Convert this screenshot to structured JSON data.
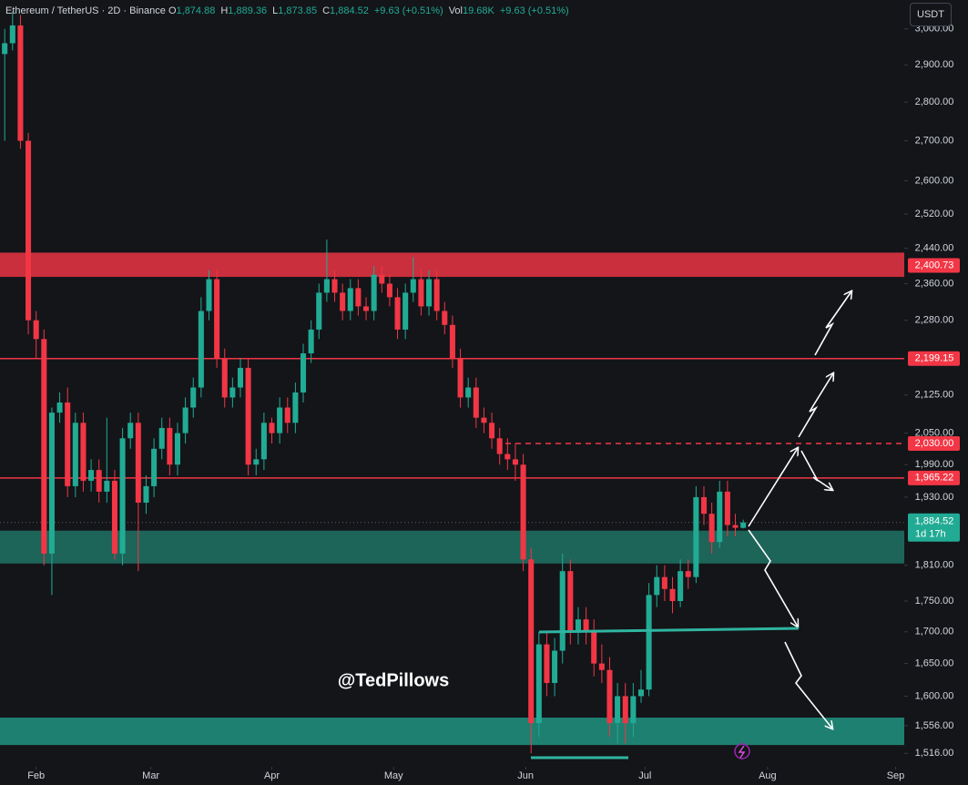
{
  "chart_data": {
    "type": "candlestick",
    "symbol": "Ethereum / TetherUS · 2D · Binance",
    "legend": [
      {
        "key": "O",
        "text": "1,874.88"
      },
      {
        "key": "H",
        "text": "1,889.36"
      },
      {
        "key": "L",
        "text": "1,873.85"
      },
      {
        "key": "C",
        "text": "1,884.52"
      },
      {
        "key": "",
        "text": "+9.63 (+0.51%)"
      },
      {
        "key": "Vol",
        "text": "19.68K"
      },
      {
        "key": "",
        "text": "+9.63 (+0.51%)"
      }
    ],
    "currency": "USDT",
    "watermark": "@TedPillows",
    "up_color": "#22ab94",
    "down_color": "#f23645",
    "log_scale": true,
    "grid": false,
    "ylim": [
      1497,
      3083
    ],
    "xlim": [
      -0.6,
      114.5
    ],
    "yticks": [
      {
        "value": 3000,
        "label": "3,000.00"
      },
      {
        "value": 2900,
        "label": "2,900.00"
      },
      {
        "value": 2800,
        "label": "2,800.00"
      },
      {
        "value": 2700,
        "label": "2,700.00"
      },
      {
        "value": 2600,
        "label": "2,600.00"
      },
      {
        "value": 2520,
        "label": "2,520.00"
      },
      {
        "value": 2440,
        "label": "2,440.00"
      },
      {
        "value": 2360,
        "label": "2,360.00"
      },
      {
        "value": 2280,
        "label": "2,280.00"
      },
      {
        "value": 2125,
        "label": "2,125.00"
      },
      {
        "value": 2050,
        "label": "2,050.00"
      },
      {
        "value": 1990,
        "label": "1,990.00"
      },
      {
        "value": 1930,
        "label": "1,930.00"
      },
      {
        "value": 1810,
        "label": "1,810.00"
      },
      {
        "value": 1750,
        "label": "1,750.00"
      },
      {
        "value": 1700,
        "label": "1,700.00"
      },
      {
        "value": 1650,
        "label": "1,650.00"
      },
      {
        "value": 1600,
        "label": "1,600.00"
      },
      {
        "value": 1556,
        "label": "1,556.00"
      },
      {
        "value": 1516,
        "label": "1,516.00"
      }
    ],
    "xticks": [
      {
        "value": 4,
        "label": "Feb"
      },
      {
        "value": 18.6,
        "label": "Mar"
      },
      {
        "value": 34,
        "label": "Apr"
      },
      {
        "value": 49.5,
        "label": "May"
      },
      {
        "value": 66.3,
        "label": "Jun"
      },
      {
        "value": 81.5,
        "label": "Jul"
      },
      {
        "value": 97.1,
        "label": "Aug"
      },
      {
        "value": 113.4,
        "label": "Sep"
      }
    ],
    "zones": [
      {
        "from": 2375,
        "to": 2430,
        "color": "#d9323f"
      },
      {
        "from": 1813,
        "to": 1870,
        "color": "#1e6b5e"
      },
      {
        "from": 1528,
        "to": 1568,
        "color": "#1f8a78"
      }
    ],
    "levels": [
      {
        "value": 2400.73,
        "label": "2,400.73",
        "line": "none"
      },
      {
        "value": 2199.15,
        "label": "2,199.15",
        "line": "solid"
      },
      {
        "value": 2030,
        "label": "2,030.00",
        "line": "dashed"
      },
      {
        "value": 1965.22,
        "label": "1,965.22",
        "line": "solid"
      }
    ],
    "level_color": "#f23645",
    "last_price_label": "1,884.52",
    "countdown": "1d 17h",
    "ohlc": [
      [
        2930,
        3000,
        2700,
        2960
      ],
      [
        2960,
        3050,
        2940,
        3010
      ],
      [
        3010,
        3040,
        2680,
        2700
      ],
      [
        2700,
        2720,
        2250,
        2280
      ],
      [
        2280,
        2300,
        2200,
        2240
      ],
      [
        2240,
        2260,
        1810,
        1830
      ],
      [
        1830,
        2100,
        1760,
        2090
      ],
      [
        2090,
        2130,
        2070,
        2110
      ],
      [
        2110,
        2140,
        1930,
        1950
      ],
      [
        1950,
        2090,
        1930,
        2070
      ],
      [
        2070,
        2090,
        1940,
        1960
      ],
      [
        1960,
        2000,
        1940,
        1980
      ],
      [
        1980,
        2000,
        1920,
        1940
      ],
      [
        1940,
        2080,
        1920,
        1960
      ],
      [
        1960,
        1980,
        1820,
        1830
      ],
      [
        1830,
        2060,
        1810,
        2040
      ],
      [
        2040,
        2090,
        2020,
        2070
      ],
      [
        2070,
        2090,
        1800,
        1920
      ],
      [
        1920,
        1970,
        1900,
        1950
      ],
      [
        1950,
        2040,
        1930,
        2020
      ],
      [
        2020,
        2080,
        2000,
        2060
      ],
      [
        2060,
        2080,
        1970,
        1990
      ],
      [
        1990,
        2070,
        1970,
        2050
      ],
      [
        2050,
        2120,
        2030,
        2100
      ],
      [
        2100,
        2160,
        2080,
        2140
      ],
      [
        2140,
        2330,
        2120,
        2300
      ],
      [
        2300,
        2390,
        2280,
        2370
      ],
      [
        2370,
        2390,
        2180,
        2200
      ],
      [
        2200,
        2220,
        2100,
        2120
      ],
      [
        2120,
        2160,
        2100,
        2140
      ],
      [
        2140,
        2200,
        2120,
        2180
      ],
      [
        2180,
        2200,
        1970,
        1990
      ],
      [
        1990,
        2020,
        1970,
        2000
      ],
      [
        2000,
        2090,
        1980,
        2070
      ],
      [
        2070,
        2080,
        2030,
        2050
      ],
      [
        2050,
        2120,
        2030,
        2100
      ],
      [
        2100,
        2120,
        2050,
        2070
      ],
      [
        2070,
        2150,
        2050,
        2130
      ],
      [
        2130,
        2230,
        2110,
        2210
      ],
      [
        2210,
        2280,
        2190,
        2260
      ],
      [
        2260,
        2360,
        2240,
        2340
      ],
      [
        2340,
        2460,
        2320,
        2370
      ],
      [
        2370,
        2390,
        2320,
        2340
      ],
      [
        2340,
        2360,
        2280,
        2300
      ],
      [
        2300,
        2370,
        2280,
        2350
      ],
      [
        2350,
        2370,
        2290,
        2310
      ],
      [
        2310,
        2330,
        2280,
        2300
      ],
      [
        2300,
        2400,
        2280,
        2380
      ],
      [
        2380,
        2400,
        2340,
        2360
      ],
      [
        2360,
        2380,
        2310,
        2330
      ],
      [
        2330,
        2350,
        2240,
        2260
      ],
      [
        2260,
        2360,
        2240,
        2340
      ],
      [
        2340,
        2420,
        2320,
        2370
      ],
      [
        2370,
        2390,
        2290,
        2310
      ],
      [
        2310,
        2390,
        2290,
        2370
      ],
      [
        2370,
        2390,
        2280,
        2300
      ],
      [
        2300,
        2320,
        2250,
        2270
      ],
      [
        2270,
        2290,
        2180,
        2200
      ],
      [
        2200,
        2220,
        2100,
        2120
      ],
      [
        2120,
        2160,
        2100,
        2140
      ],
      [
        2140,
        2160,
        2060,
        2080
      ],
      [
        2080,
        2100,
        2050,
        2070
      ],
      [
        2070,
        2090,
        2020,
        2040
      ],
      [
        2040,
        2060,
        1990,
        2010
      ],
      [
        2010,
        2040,
        1980,
        2000
      ],
      [
        2000,
        2030,
        1960,
        1990
      ],
      [
        1990,
        2010,
        1800,
        1820
      ],
      [
        1820,
        1840,
        1516,
        1560
      ],
      [
        1560,
        1700,
        1540,
        1680
      ],
      [
        1680,
        1700,
        1600,
        1620
      ],
      [
        1620,
        1690,
        1600,
        1670
      ],
      [
        1670,
        1830,
        1650,
        1800
      ],
      [
        1800,
        1820,
        1680,
        1700
      ],
      [
        1700,
        1740,
        1680,
        1720
      ],
      [
        1720,
        1740,
        1680,
        1700
      ],
      [
        1700,
        1720,
        1630,
        1650
      ],
      [
        1650,
        1680,
        1620,
        1640
      ],
      [
        1640,
        1660,
        1540,
        1560
      ],
      [
        1560,
        1620,
        1530,
        1600
      ],
      [
        1600,
        1620,
        1530,
        1560
      ],
      [
        1560,
        1620,
        1540,
        1600
      ],
      [
        1600,
        1640,
        1590,
        1610
      ],
      [
        1610,
        1780,
        1600,
        1760
      ],
      [
        1760,
        1810,
        1740,
        1790
      ],
      [
        1790,
        1810,
        1750,
        1770
      ],
      [
        1770,
        1790,
        1730,
        1750
      ],
      [
        1750,
        1820,
        1740,
        1800
      ],
      [
        1800,
        1820,
        1770,
        1790
      ],
      [
        1790,
        1950,
        1780,
        1930
      ],
      [
        1930,
        1950,
        1880,
        1900
      ],
      [
        1900,
        1920,
        1830,
        1850
      ],
      [
        1850,
        1960,
        1840,
        1940
      ],
      [
        1940,
        1960,
        1860,
        1880
      ],
      [
        1880,
        1900,
        1860,
        1875
      ],
      [
        1874.88,
        1889.36,
        1873.85,
        1884.52
      ]
    ]
  }
}
